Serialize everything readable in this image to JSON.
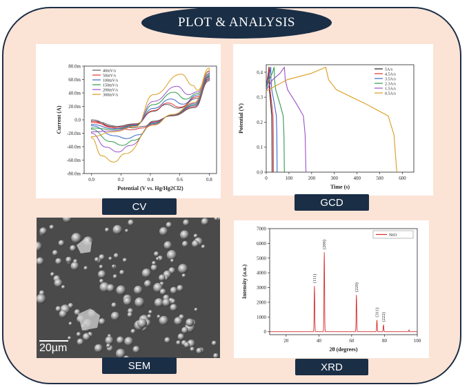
{
  "header": {
    "title": "PLOT & ANALYSIS"
  },
  "labels": {
    "cv": "CV",
    "gcd": "GCD",
    "sem": "SEM",
    "xrd": "XRD"
  },
  "sem": {
    "scale_bar": "20µm"
  },
  "colors": {
    "frame_bg": "#fbe3d6",
    "navy": "#1a2e46"
  },
  "chart_data": [
    {
      "id": "cv",
      "type": "line",
      "xlabel": "Potential (V vs. Hg/Hg2Cl2)",
      "ylabel": "Current (A)",
      "xlim": [
        -0.05,
        0.85
      ],
      "ylim": [
        -80,
        80
      ],
      "xticks": [
        "0.0",
        "0.2",
        "0.4",
        "0.6",
        "0.8"
      ],
      "yticks": [
        "80.0m",
        "60.0m",
        "40.0m",
        "20.0m",
        "0.0",
        "-20.0m",
        "-40.0m",
        "-60.0m",
        "-80.0m"
      ],
      "legend": "top-left",
      "series": [
        {
          "name": "40mV/s",
          "color": "#5b5b5b",
          "peak_anodic": [
            0.51,
            23
          ],
          "peak_cathodic": [
            0.28,
            -12
          ],
          "end": [
            0.8,
            62
          ],
          "start": [
            0.0,
            -2
          ]
        },
        {
          "name": "50mV/s",
          "color": "#e0303a",
          "peak_anodic": [
            0.52,
            25
          ],
          "peak_cathodic": [
            0.27,
            -15
          ],
          "end": [
            0.8,
            64
          ],
          "start": [
            0.0,
            -4
          ]
        },
        {
          "name": "100mV/s",
          "color": "#3a66c9",
          "peak_anodic": [
            0.54,
            31
          ],
          "peak_cathodic": [
            0.24,
            -28
          ],
          "end": [
            0.8,
            66
          ],
          "start": [
            0.0,
            -9
          ]
        },
        {
          "name": "150mV/s",
          "color": "#2f9a4a",
          "peak_anodic": [
            0.56,
            41
          ],
          "peak_cathodic": [
            0.21,
            -38
          ],
          "end": [
            0.8,
            69
          ],
          "start": [
            0.0,
            -14
          ]
        },
        {
          "name": "200mV/s",
          "color": "#9a4fc7",
          "peak_anodic": [
            0.58,
            50
          ],
          "peak_cathodic": [
            0.18,
            -48
          ],
          "end": [
            0.8,
            72
          ],
          "start": [
            0.0,
            -20
          ]
        },
        {
          "name": "300mV/s",
          "color": "#d99a18",
          "peak_anodic": [
            0.61,
            68
          ],
          "peak_cathodic": [
            0.15,
            -63
          ],
          "end": [
            0.8,
            77
          ],
          "start": [
            0.0,
            -27
          ]
        }
      ]
    },
    {
      "id": "gcd",
      "type": "line",
      "xlabel": "Time (s)",
      "ylabel": "Potential (V)",
      "xlim": [
        0,
        650
      ],
      "ylim": [
        0,
        0.43
      ],
      "xticks": [
        "0",
        "100",
        "200",
        "300",
        "400",
        "500",
        "600"
      ],
      "yticks": [
        "0.0",
        "0.1",
        "0.2",
        "0.3",
        "0.4"
      ],
      "legend": "top-right",
      "series": [
        {
          "name": "5A/s",
          "color": "#222222",
          "t_peak": 12,
          "t_end": 26
        },
        {
          "name": "4.5A/s",
          "color": "#e0303a",
          "t_peak": 14,
          "t_end": 32
        },
        {
          "name": "3.5A/s",
          "color": "#3a66c9",
          "t_peak": 20,
          "t_end": 48
        },
        {
          "name": "2.3A/s",
          "color": "#2f9a4a",
          "t_peak": 35,
          "t_end": 80
        },
        {
          "name": "1.5A/s",
          "color": "#9a4fc7",
          "t_peak": 80,
          "t_end": 175
        },
        {
          "name": "0.5A/s",
          "color": "#d99a18",
          "t_peak": 262,
          "t_end": 575
        }
      ]
    },
    {
      "id": "xrd",
      "type": "line",
      "xlabel": "2θ (degrees)",
      "ylabel": "Intensity (a.u.)",
      "xlim": [
        10,
        100
      ],
      "ylim": [
        -200,
        7000
      ],
      "xticks": [
        "20",
        "40",
        "60",
        "80",
        "100"
      ],
      "yticks": [
        "0",
        "1000",
        "2000",
        "3000",
        "4000",
        "5000",
        "6000",
        "7000"
      ],
      "legend": "top-right",
      "series": [
        {
          "name": "NiO",
          "color": "#d62a2a"
        }
      ],
      "peaks": [
        {
          "x": 37.3,
          "y": 3100,
          "label": "(111)"
        },
        {
          "x": 43.3,
          "y": 5400,
          "label": "(200)"
        },
        {
          "x": 62.9,
          "y": 2500,
          "label": "(220)"
        },
        {
          "x": 75.4,
          "y": 800,
          "label": "(311)"
        },
        {
          "x": 79.4,
          "y": 480,
          "label": "(222)"
        },
        {
          "x": 95.0,
          "y": 120,
          "label": ""
        }
      ]
    }
  ]
}
